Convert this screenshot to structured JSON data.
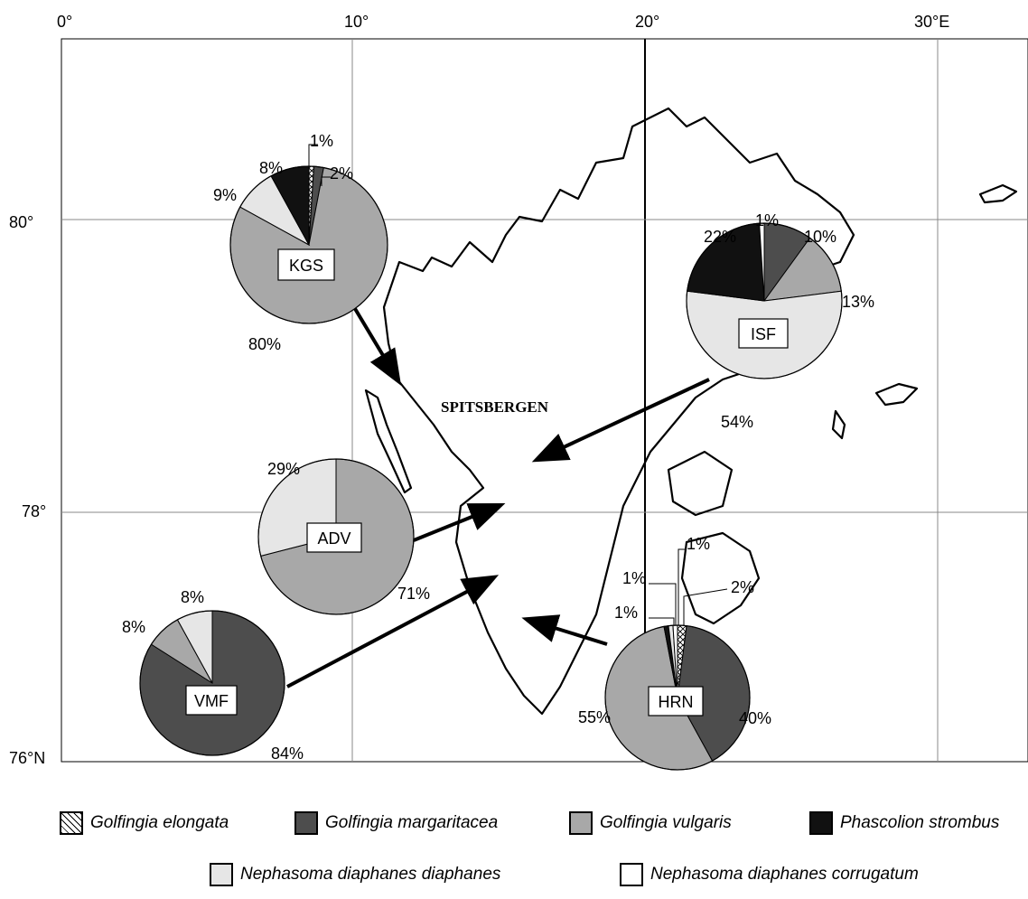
{
  "map": {
    "region_label": "SPITSBERGEN",
    "lon_labels": [
      "0°",
      "10°",
      "20°",
      "30°E"
    ],
    "lat_labels": [
      "80°",
      "78°",
      "76°N"
    ]
  },
  "species": [
    {
      "id": "ge",
      "name": "Golfingia elongata",
      "color": "#ffffff",
      "pattern": "hatch"
    },
    {
      "id": "gm",
      "name": "Golfingia margaritacea",
      "color": "#4d4d4d"
    },
    {
      "id": "gv",
      "name": "Golfingia vulgaris",
      "color": "#a8a8a8"
    },
    {
      "id": "ps",
      "name": "Phascolion strombus",
      "color": "#111111"
    },
    {
      "id": "ndd",
      "name": "Nephasoma diaphanes diaphanes",
      "color": "#e6e6e6"
    },
    {
      "id": "ndc",
      "name": "Nephasoma diaphanes corrugatum",
      "color": "#ffffff"
    }
  ],
  "chart_data": [
    {
      "type": "pie",
      "site": "KGS",
      "slices": [
        {
          "species": "Golfingia elongata",
          "value": 1,
          "label": "1%"
        },
        {
          "species": "Golfingia margaritacea",
          "value": 2,
          "label": "2%"
        },
        {
          "species": "Golfingia vulgaris",
          "value": 80,
          "label": "80%"
        },
        {
          "species": "Nephasoma diaphanes diaphanes",
          "value": 9,
          "label": "9%"
        },
        {
          "species": "Phascolion strombus",
          "value": 8,
          "label": "8%"
        }
      ]
    },
    {
      "type": "pie",
      "site": "ISF",
      "slices": [
        {
          "species": "Golfingia margaritacea",
          "value": 10,
          "label": "10%"
        },
        {
          "species": "Golfingia vulgaris",
          "value": 13,
          "label": "13%"
        },
        {
          "species": "Nephasoma diaphanes diaphanes",
          "value": 54,
          "label": "54%"
        },
        {
          "species": "Phascolion strombus",
          "value": 22,
          "label": "22%"
        },
        {
          "species": "Nephasoma diaphanes corrugatum",
          "value": 1,
          "label": "1%"
        }
      ]
    },
    {
      "type": "pie",
      "site": "ADV",
      "slices": [
        {
          "species": "Golfingia vulgaris",
          "value": 71,
          "label": "71%"
        },
        {
          "species": "Nephasoma diaphanes diaphanes",
          "value": 29,
          "label": "29%"
        }
      ]
    },
    {
      "type": "pie",
      "site": "VMF",
      "slices": [
        {
          "species": "Golfingia margaritacea",
          "value": 84,
          "label": "84%"
        },
        {
          "species": "Golfingia vulgaris",
          "value": 8,
          "label": "8%"
        },
        {
          "species": "Nephasoma diaphanes diaphanes",
          "value": 8,
          "label": "8%"
        }
      ]
    },
    {
      "type": "pie",
      "site": "HRN",
      "slices": [
        {
          "species": "Golfingia elongata",
          "value": 2,
          "label": "2%"
        },
        {
          "species": "Golfingia margaritacea",
          "value": 40,
          "label": "40%"
        },
        {
          "species": "Golfingia vulgaris",
          "value": 55,
          "label": "55%"
        },
        {
          "species": "Phascolion strombus",
          "value": 1,
          "label": "1%"
        },
        {
          "species": "Nephasoma diaphanes diaphanes",
          "value": 1,
          "label": "1%"
        },
        {
          "species": "Nephasoma diaphanes corrugatum",
          "value": 1,
          "label": "1%"
        }
      ]
    }
  ]
}
